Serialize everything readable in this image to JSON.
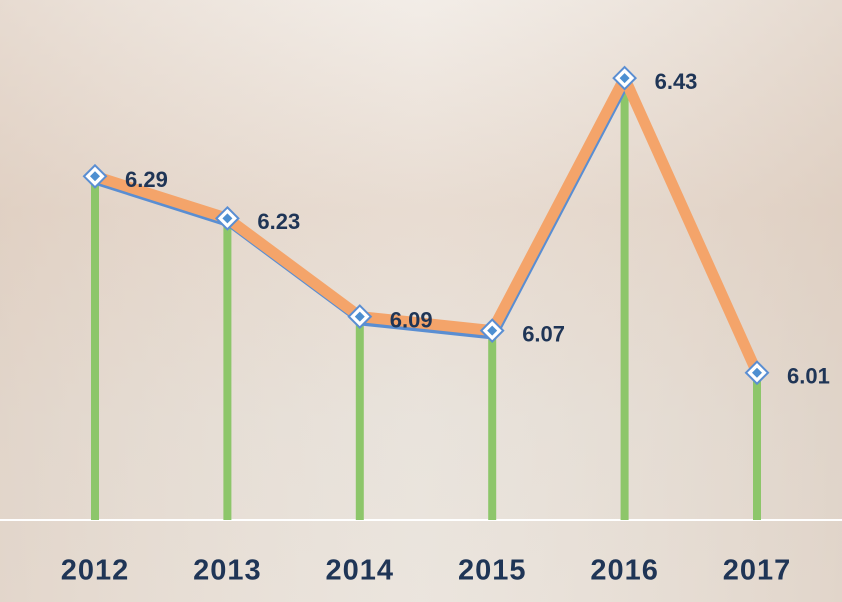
{
  "chart_data": {
    "type": "line",
    "categories": [
      "2012",
      "2013",
      "2014",
      "2015",
      "2016",
      "2017"
    ],
    "values": [
      6.29,
      6.23,
      6.09,
      6.07,
      6.43,
      6.01
    ],
    "color": "#f4a46a",
    "ylim": [
      5.8,
      6.5
    ]
  }
}
